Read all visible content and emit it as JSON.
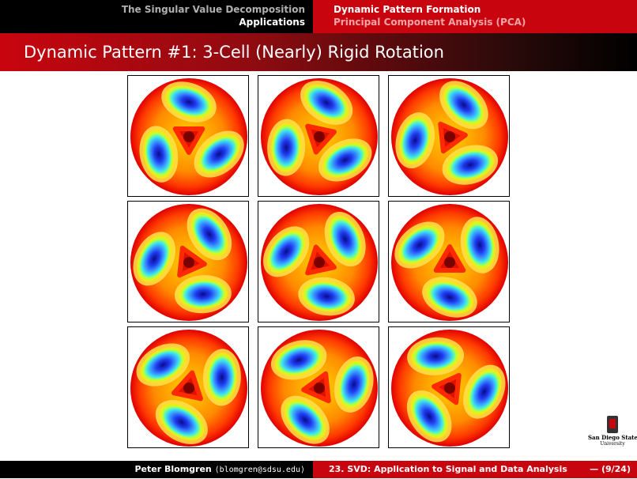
{
  "header": {
    "section_title": "The Singular Value Decomposition",
    "section_subtitle": "Applications",
    "subsection_title": "Dynamic Pattern Formation",
    "subsection_subtitle": "Principal Component Analysis (PCA)"
  },
  "slide": {
    "title": "Dynamic Pattern #1: 3-Cell (Nearly) Rigid Rotation"
  },
  "figure": {
    "panel_count": 9,
    "panel_rotations_deg": [
      0,
      12,
      24,
      36,
      48,
      60,
      72,
      84,
      96
    ]
  },
  "logo": {
    "line1": "San Diego State",
    "line2": "University"
  },
  "footer": {
    "author": "Peter Blomgren",
    "email": "⟨blomgren@sdsu.edu⟩",
    "lecture": "23. SVD: Application to Signal and Data Analysis",
    "page": "— (9/24)"
  }
}
